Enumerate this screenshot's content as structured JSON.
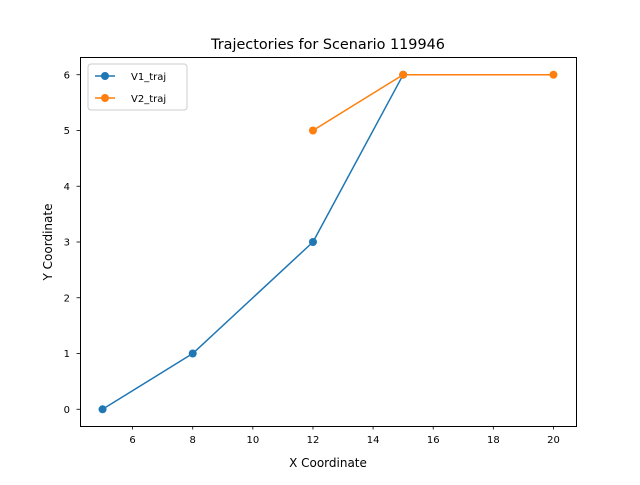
{
  "chart_data": {
    "type": "line",
    "title": "Trajectories for Scenario 119946",
    "xlabel": "X Coordinate",
    "ylabel": "Y Coordinate",
    "xlim": [
      4.25,
      20.75
    ],
    "ylim": [
      -0.3,
      6.3
    ],
    "xticks": [
      6,
      8,
      10,
      12,
      14,
      16,
      18,
      20
    ],
    "yticks": [
      0,
      1,
      2,
      3,
      4,
      5,
      6
    ],
    "grid": false,
    "legend_position": "upper-left",
    "series": [
      {
        "name": "V1_traj",
        "color": "#1f77b4",
        "marker": "circle",
        "points": [
          [
            5,
            0
          ],
          [
            8,
            1
          ],
          [
            12,
            3
          ],
          [
            15,
            6
          ]
        ]
      },
      {
        "name": "V2_traj",
        "color": "#ff7f0e",
        "marker": "circle",
        "points": [
          [
            12,
            5
          ],
          [
            15,
            6
          ],
          [
            20,
            6
          ]
        ]
      }
    ]
  }
}
